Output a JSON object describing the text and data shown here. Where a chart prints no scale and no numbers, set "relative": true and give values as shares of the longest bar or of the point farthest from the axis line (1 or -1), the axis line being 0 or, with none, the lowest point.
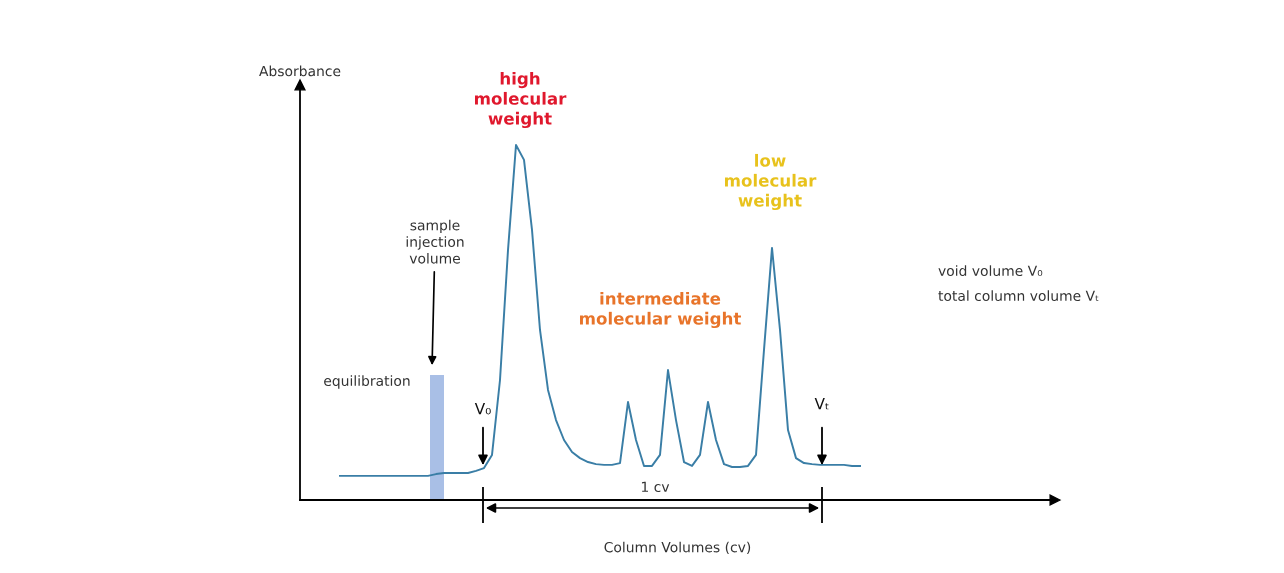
{
  "chart_data": {
    "type": "line",
    "relative": true,
    "tick_labels": false,
    "xlabel": "Column Volumes (cv)",
    "ylabel": "Absorbance",
    "categories": [
      null,
      null,
      null,
      null,
      null,
      null,
      null,
      null,
      null,
      null,
      null,
      null,
      null,
      null,
      null,
      null,
      null,
      null,
      null,
      null,
      null,
      null,
      null,
      null,
      null,
      null,
      null,
      null,
      null,
      null,
      null,
      null,
      null,
      null,
      null,
      null,
      null,
      null,
      null,
      null,
      null,
      null,
      null,
      null,
      null,
      null,
      null,
      null,
      null,
      null,
      null,
      null,
      null,
      null,
      null,
      null,
      null,
      null,
      null,
      null,
      null,
      null,
      null,
      null,
      null,
      null
    ],
    "series": [
      {
        "color": "#3a7ea6",
        "values": [
          0.068,
          0.068,
          0.068,
          0.068,
          0.068,
          0.068,
          0.068,
          0.068,
          0.068,
          0.068,
          0.068,
          0.068,
          0.073,
          0.076,
          0.076,
          0.076,
          0.076,
          0.082,
          0.09,
          0.127,
          0.338,
          0.704,
          1.0,
          0.958,
          0.761,
          0.479,
          0.31,
          0.225,
          0.169,
          0.135,
          0.118,
          0.107,
          0.101,
          0.099,
          0.099,
          0.104,
          0.276,
          0.169,
          0.096,
          0.096,
          0.127,
          0.366,
          0.225,
          0.107,
          0.096,
          0.127,
          0.276,
          0.169,
          0.101,
          0.093,
          0.093,
          0.096,
          0.127,
          0.423,
          0.71,
          0.479,
          0.197,
          0.118,
          0.104,
          0.101,
          0.099,
          0.099,
          0.099,
          0.099,
          0.096,
          0.096
        ]
      }
    ],
    "annotations": [
      "V₀",
      "Vₜ",
      "high\nmolecular\nweight",
      "intermediate\nmolecular weight",
      "low\nmolecular\nweight",
      "sample\ninjection\nvolume",
      "equilibration",
      "1 cv",
      "void volume V₀",
      "total column volume Vₜ"
    ]
  }
}
